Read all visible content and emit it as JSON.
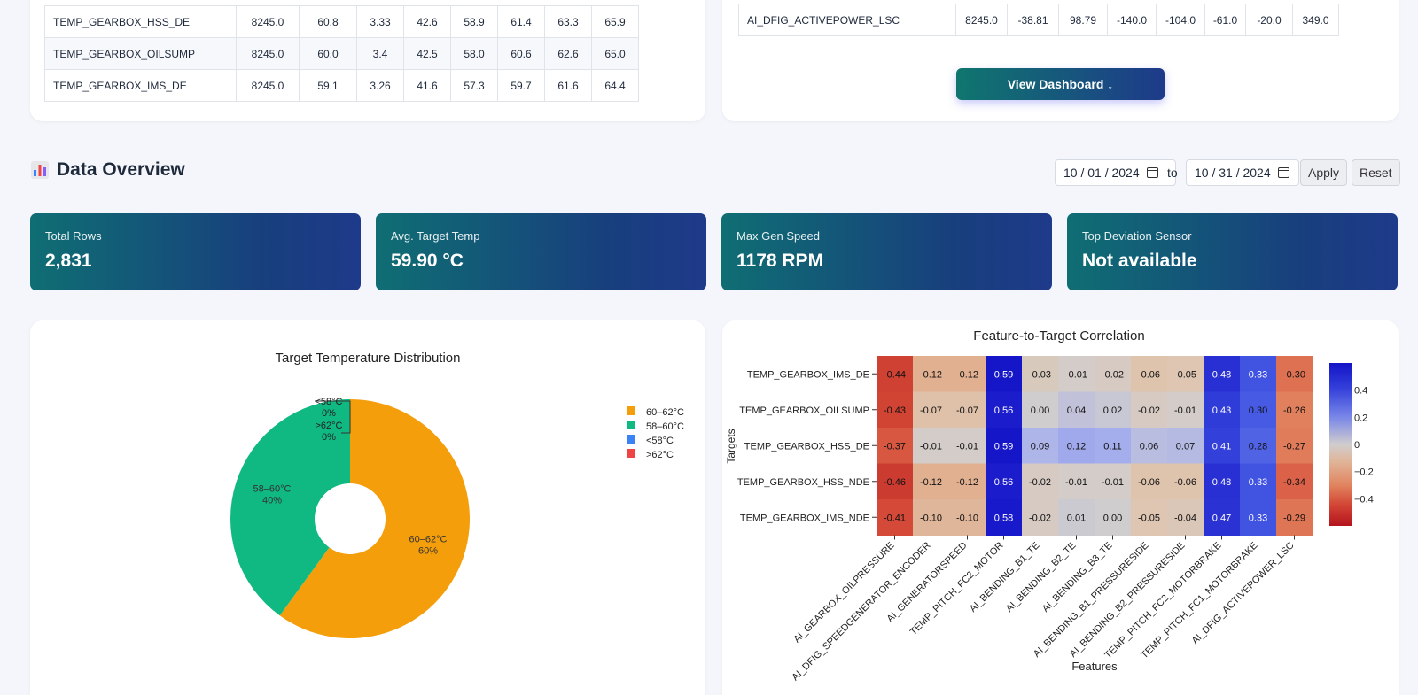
{
  "top_left_table": {
    "rows": [
      {
        "name": "TEMP_GEARBOX_HSS_DE",
        "values": [
          "8245.0",
          "60.8",
          "3.33",
          "42.6",
          "58.9",
          "61.4",
          "63.3",
          "65.9"
        ]
      },
      {
        "name": "TEMP_GEARBOX_OILSUMP",
        "values": [
          "8245.0",
          "60.0",
          "3.4",
          "42.5",
          "58.0",
          "60.6",
          "62.6",
          "65.0"
        ]
      },
      {
        "name": "TEMP_GEARBOX_IMS_DE",
        "values": [
          "8245.0",
          "59.1",
          "3.26",
          "41.6",
          "57.3",
          "59.7",
          "61.6",
          "64.4"
        ]
      }
    ]
  },
  "top_right_table": {
    "rows": [
      {
        "name": "AI_DFIG_ACTIVEPOWER_LSC",
        "values": [
          "8245.0",
          "-38.81",
          "98.79",
          "-140.0",
          "-104.0",
          "-61.0",
          "-20.0",
          "349.0"
        ]
      }
    ]
  },
  "view_dashboard_label": "View Dashboard ↓",
  "overview": {
    "title": "Data Overview",
    "icon": "bar-chart-icon",
    "date_from": "10 / 01 / 2024",
    "date_to": "10 / 31 / 2024",
    "to_label": "to",
    "apply_label": "Apply",
    "reset_label": "Reset"
  },
  "kpis": [
    {
      "label": "Total Rows",
      "value": "2,831"
    },
    {
      "label": "Avg. Target Temp",
      "value": "59.90 °C"
    },
    {
      "label": "Max Gen Speed",
      "value": "1178 RPM"
    },
    {
      "label": "Top Deviation Sensor",
      "value": "Not available"
    }
  ],
  "chart_data": [
    {
      "type": "pie",
      "title": "Target Temperature Distribution",
      "hole": true,
      "slices": [
        {
          "label": "60–62°C",
          "percent": "60%",
          "value": 60,
          "color": "#f59e0b"
        },
        {
          "label": "58–60°C",
          "percent": "40%",
          "value": 40,
          "color": "#10b981"
        },
        {
          "label": "<58°C",
          "percent": "0%",
          "value": 0,
          "color": "#3b82f6"
        },
        {
          "label": ">62°C",
          "percent": "0%",
          "value": 0,
          "color": "#ef4444"
        }
      ],
      "legend_position": "top-right"
    },
    {
      "type": "heatmap",
      "title": "Feature-to-Target Correlation",
      "xlabel": "Features",
      "ylabel": "Targets",
      "x": [
        "AI_GEARBOX_OILPRESSURE",
        "AI_DFIG_SPEEDGENERATOR_ENCODER",
        "AI_GENERATORSPEED",
        "TEMP_PITCH_FC2_MOTOR",
        "AI_BENDING_B1_TE",
        "AI_BENDING_B2_TE",
        "AI_BENDING_B3_TE",
        "AI_BENDING_B1_PRESSURESIDE",
        "AI_BENDING_B2_PRESSURESIDE",
        "TEMP_PITCH_FC2_MOTORBRAKE",
        "TEMP_PITCH_FC1_MOTORBRAKE",
        "AI_DFIG_ACTIVEPOWER_LSC"
      ],
      "y": [
        "TEMP_GEARBOX_IMS_DE",
        "TEMP_GEARBOX_OILSUMP",
        "TEMP_GEARBOX_HSS_DE",
        "TEMP_GEARBOX_HSS_NDE",
        "TEMP_GEARBOX_IMS_NDE"
      ],
      "z": [
        [
          -0.44,
          -0.12,
          -0.12,
          0.59,
          -0.03,
          -0.01,
          -0.02,
          -0.06,
          -0.05,
          0.48,
          0.33,
          -0.3
        ],
        [
          -0.43,
          -0.07,
          -0.07,
          0.56,
          0.0,
          0.04,
          0.02,
          -0.02,
          -0.01,
          0.43,
          0.3,
          -0.26
        ],
        [
          -0.37,
          -0.01,
          -0.01,
          0.59,
          0.09,
          0.12,
          0.11,
          0.06,
          0.07,
          0.41,
          0.28,
          -0.27
        ],
        [
          -0.46,
          -0.12,
          -0.12,
          0.56,
          -0.02,
          -0.01,
          -0.01,
          -0.06,
          -0.06,
          0.48,
          0.33,
          -0.34
        ],
        [
          -0.41,
          -0.1,
          -0.1,
          0.58,
          -0.02,
          0.01,
          0.0,
          -0.05,
          -0.04,
          0.47,
          0.33,
          -0.29
        ]
      ],
      "colorbar_ticks": [
        "0.4",
        "0.2",
        "0",
        "−0.2",
        "−0.4"
      ],
      "zrange": [
        -0.6,
        0.6
      ]
    }
  ]
}
